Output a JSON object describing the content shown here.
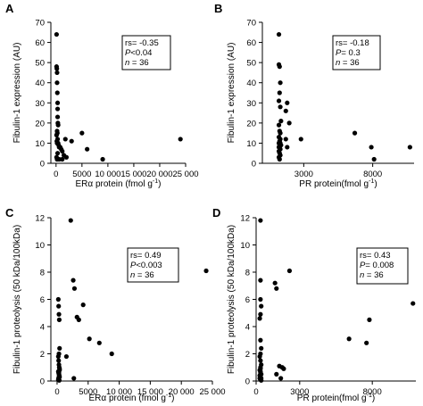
{
  "chart_data": [
    {
      "panel": "A",
      "type": "scatter",
      "xlabel_prefix": "ER",
      "xlabel_greek": "α",
      "xlabel_suffix": " protein (fmol g",
      "xlabel_sup": "-1",
      "xlabel_close": ")",
      "ylabel": "Fibulin-1 expression (AU)",
      "xlim": [
        -1000,
        25000
      ],
      "ylim": [
        0,
        70
      ],
      "xticks": [
        0,
        5000,
        10000,
        15000,
        20000,
        25000
      ],
      "xtick_labels": [
        "0",
        "5000",
        "10 000",
        "15 000",
        "20 000",
        "25 000"
      ],
      "yticks": [
        0,
        10,
        20,
        30,
        40,
        50,
        60,
        70
      ],
      "ytick_labels": [
        "0",
        "10",
        "20",
        "30",
        "40",
        "50",
        "60",
        "70"
      ],
      "stats": {
        "rs": "rs= -0.35",
        "p_label": "P",
        "p_value": "<0.04",
        "n_label": "n",
        "n_value": " = 36"
      },
      "x": [
        100,
        100,
        150,
        200,
        200,
        250,
        300,
        300,
        300,
        350,
        400,
        200,
        250,
        100,
        300,
        150,
        200,
        400,
        500,
        600,
        800,
        1000,
        1200,
        1500,
        2000,
        100,
        200,
        600,
        1200,
        1800,
        3000,
        5000,
        6000,
        9000,
        24000,
        300
      ],
      "y": [
        64,
        48,
        47,
        45,
        40,
        35,
        30,
        27,
        23,
        20,
        19,
        16,
        15,
        14,
        12,
        11,
        10,
        10,
        9,
        8,
        8,
        7,
        6,
        4,
        3,
        3,
        2,
        2,
        2,
        12,
        11,
        15,
        7,
        2,
        12,
        5
      ]
    },
    {
      "panel": "B",
      "type": "scatter",
      "xlabel_prefix": "PR protein(fmol g",
      "xlabel_sup": "-1",
      "xlabel_close": ")",
      "ylabel": "Fibulin-1 expression (AU)",
      "xlim": [
        0,
        11000
      ],
      "ylim": [
        0,
        70
      ],
      "xticks": [
        3000,
        8000
      ],
      "xtick_labels": [
        "3000",
        "8000"
      ],
      "yticks": [
        0,
        10,
        20,
        30,
        40,
        50,
        60,
        70
      ],
      "ytick_labels": [
        "0",
        "10",
        "20",
        "30",
        "40",
        "50",
        "60",
        "70"
      ],
      "stats": {
        "rs": "rs= -0.18",
        "p_label": "P",
        "p_value": "= 0.3",
        "n_label": "n",
        "n_value": " = 36"
      },
      "x": [
        1200,
        1200,
        1250,
        1300,
        1250,
        1200,
        1300,
        1350,
        1200,
        1250,
        1300,
        1200,
        1300,
        1250,
        1200,
        1300,
        1350,
        1250,
        1200,
        1250,
        1300,
        1200,
        1250,
        1300,
        1200,
        1250,
        1700,
        1800,
        1950,
        1700,
        1800,
        2800,
        6700,
        7900,
        8100,
        10700
      ],
      "y": [
        64,
        49,
        48,
        40,
        35,
        31,
        28,
        21,
        19,
        16,
        15,
        13,
        12,
        11,
        10,
        10,
        9,
        9,
        8,
        8,
        7,
        6,
        5,
        4,
        3,
        2,
        26,
        30,
        20,
        12,
        8,
        12,
        15,
        8,
        2,
        8
      ]
    },
    {
      "panel": "C",
      "type": "scatter",
      "xlabel_prefix": "ER",
      "xlabel_greek": "α",
      "xlabel_suffix": " protein (fmol g",
      "xlabel_sup": "-1",
      "xlabel_close": ")",
      "ylabel": "Fibulin-1 proteolysis (50 kDa/100kDa)",
      "xlim": [
        -1000,
        25000
      ],
      "ylim": [
        0,
        12
      ],
      "xticks": [
        0,
        5000,
        10000,
        15000,
        20000,
        25000
      ],
      "xtick_labels": [
        "0",
        "5000",
        "10 000",
        "15 000",
        "20 000",
        "25 000"
      ],
      "yticks": [
        0,
        2,
        4,
        6,
        8,
        10,
        12
      ],
      "ytick_labels": [
        "0",
        "2",
        "4",
        "6",
        "8",
        "10",
        "12"
      ],
      "stats": {
        "rs": "rs= 0.49",
        "p_label": "P",
        "p_value": "<0.003",
        "n_label": "n",
        "n_value": " = 36"
      },
      "x": [
        200,
        250,
        300,
        350,
        400,
        300,
        200,
        250,
        300,
        350,
        400,
        200,
        250,
        300,
        350,
        400,
        300,
        250,
        200,
        300,
        350,
        400,
        300,
        250,
        1500,
        2200,
        2600,
        2800,
        3200,
        3500,
        4200,
        5200,
        6800,
        8800,
        2700,
        24000
      ],
      "y": [
        6.0,
        5.5,
        4.9,
        4.5,
        2.4,
        2.0,
        1.8,
        1.5,
        1.2,
        1.0,
        0.8,
        0.7,
        0.6,
        0.5,
        0.4,
        0.3,
        0.3,
        0.2,
        0.1,
        0.1,
        0.05,
        0.9,
        0.6,
        0.2,
        1.8,
        11.8,
        7.4,
        6.8,
        4.7,
        4.5,
        5.6,
        3.1,
        2.8,
        2.0,
        0.2,
        8.1
      ]
    },
    {
      "panel": "D",
      "type": "scatter",
      "xlabel_prefix": "PR protein(fmol g",
      "xlabel_sup": "-1",
      "xlabel_close": ")",
      "ylabel": "Fibulin-1 proteolysis (50 kDa/100kDa)",
      "xlim": [
        0,
        11000
      ],
      "ylim": [
        0,
        12
      ],
      "xticks": [
        0,
        3000,
        8000
      ],
      "xtick_labels": [
        "0",
        "3000",
        "8000"
      ],
      "yticks": [
        0,
        2,
        4,
        6,
        8,
        10,
        12
      ],
      "ytick_labels": [
        "0",
        "2",
        "4",
        "6",
        "8",
        "10",
        "12"
      ],
      "stats": {
        "rs": "rs= 0.43",
        "p_label": "P",
        "p_value": "= 0.008",
        "n_label": "n",
        "n_value": " = 36"
      },
      "x": [
        300,
        300,
        300,
        350,
        300,
        250,
        300,
        350,
        300,
        250,
        300,
        350,
        300,
        250,
        300,
        350,
        300,
        250,
        300,
        350,
        300,
        250,
        300,
        350,
        1300,
        1400,
        1600,
        1800,
        1900,
        1400,
        1700,
        2300,
        6400,
        7600,
        7800,
        10800
      ],
      "y": [
        11.8,
        7.4,
        6.0,
        5.5,
        4.9,
        4.6,
        3.0,
        2.4,
        2.0,
        1.8,
        1.5,
        1.2,
        1.0,
        0.8,
        0.6,
        0.5,
        0.3,
        0.2,
        0.1,
        0.05,
        0.9,
        0.4,
        0.7,
        0.2,
        7.2,
        6.8,
        1.1,
        1.0,
        0.9,
        0.5,
        0.2,
        8.1,
        3.1,
        2.8,
        4.5,
        5.7
      ]
    }
  ]
}
